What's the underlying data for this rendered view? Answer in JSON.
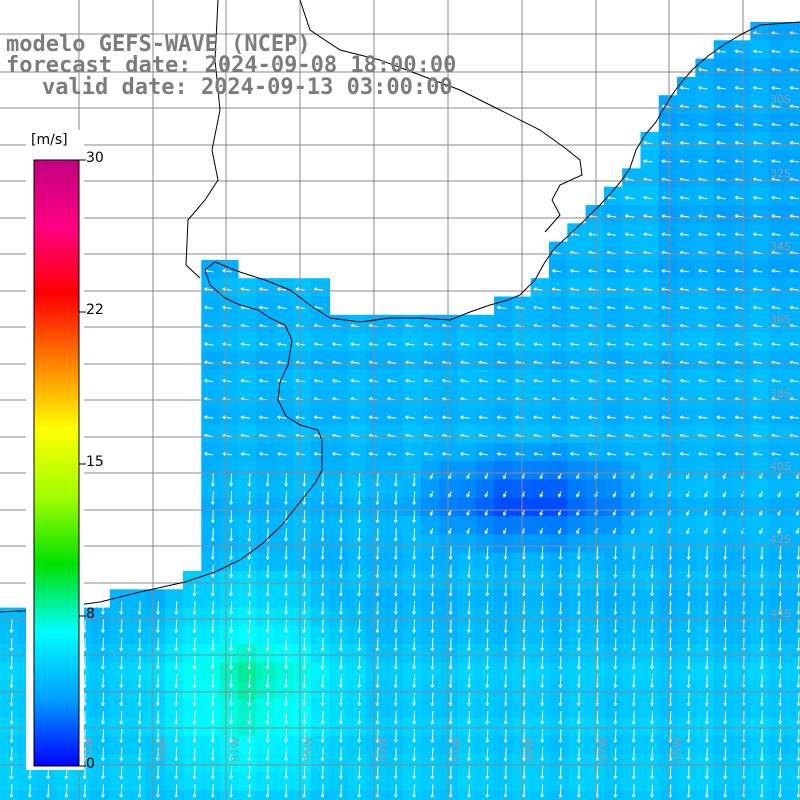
{
  "title": {
    "line1": "modelo GEFS-WAVE (NCEP)",
    "line2": "forecast date: 2024-09-08 18:00:00",
    "line3": "valid date: 2024-09-13 03:00:00"
  },
  "colorbar": {
    "unit": "[m/s]",
    "ticks": [
      "30",
      "22",
      "15",
      "8",
      "0"
    ],
    "colors": [
      "#0000ff",
      "#00a0ff",
      "#00ffff",
      "#00e000",
      "#a0ff00",
      "#ffff00",
      "#ff8000",
      "#ff0000",
      "#ff0080",
      "#c00080"
    ]
  },
  "grid": {
    "lon_labels": [
      "61W",
      "59W",
      "57W",
      "55W",
      "53W",
      "51W",
      "49W",
      "47W",
      "45W"
    ],
    "lat_labels": [
      "30S",
      "32S",
      "34S",
      "36S",
      "38S",
      "40S",
      "42S",
      "44S"
    ]
  },
  "field": {
    "description_colors": {
      "land": "#ffffff",
      "coast": "#000000",
      "gridline": "#808080",
      "arrow": "#ffffff"
    }
  }
}
